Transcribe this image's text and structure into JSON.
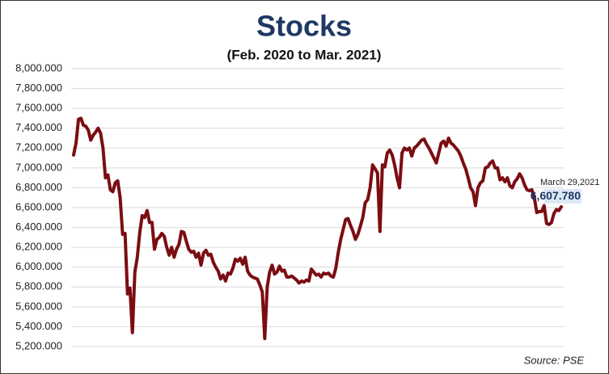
{
  "chart_data": {
    "type": "line",
    "title": "Stocks",
    "subtitle": "(Feb. 2020 to Mar. 2021)",
    "source": "Source: PSE",
    "color": "#7b0d12",
    "grid": true,
    "ylim": [
      5200,
      8000
    ],
    "yticks": [
      {
        "value": 5200,
        "label": "5,200.000"
      },
      {
        "value": 5400,
        "label": "5,400.000"
      },
      {
        "value": 5600,
        "label": "5,600.000"
      },
      {
        "value": 5800,
        "label": "5,800.000"
      },
      {
        "value": 6000,
        "label": "6,000.000"
      },
      {
        "value": 6200,
        "label": "6,200.000"
      },
      {
        "value": 6400,
        "label": "6,400.000"
      },
      {
        "value": 6600,
        "label": "6,600.000"
      },
      {
        "value": 6800,
        "label": "6,800.000"
      },
      {
        "value": 7000,
        "label": "7,000.000"
      },
      {
        "value": 7200,
        "label": "7,200.000"
      },
      {
        "value": 7400,
        "label": "7,400.000"
      },
      {
        "value": 7600,
        "label": "7,600.000"
      },
      {
        "value": 7800,
        "label": "7,800.000"
      },
      {
        "value": 8000,
        "label": "8,000.000"
      }
    ],
    "values": [
      7130,
      7250,
      7490,
      7500,
      7430,
      7420,
      7380,
      7280,
      7330,
      7360,
      7400,
      7350,
      7200,
      6900,
      6930,
      6780,
      6760,
      6850,
      6870,
      6700,
      6330,
      6340,
      5730,
      5790,
      5340,
      5950,
      6100,
      6350,
      6520,
      6500,
      6570,
      6450,
      6450,
      6180,
      6280,
      6300,
      6340,
      6310,
      6200,
      6120,
      6200,
      6100,
      6180,
      6230,
      6360,
      6350,
      6260,
      6180,
      6150,
      6160,
      6100,
      6140,
      6020,
      6140,
      6170,
      6120,
      6130,
      6050,
      6000,
      5960,
      5880,
      5920,
      5860,
      5940,
      5930,
      5990,
      6080,
      6060,
      6090,
      6030,
      6100,
      5960,
      5920,
      5900,
      5890,
      5880,
      5820,
      5750,
      5280,
      5800,
      5950,
      6020,
      5930,
      5950,
      6010,
      5960,
      5970,
      5900,
      5900,
      5910,
      5890,
      5870,
      5840,
      5860,
      5850,
      5870,
      5860,
      5980,
      5950,
      5920,
      5930,
      5900,
      5940,
      5930,
      5940,
      5910,
      5900,
      5990,
      6150,
      6280,
      6380,
      6480,
      6490,
      6420,
      6360,
      6280,
      6330,
      6410,
      6500,
      6650,
      6680,
      6800,
      7030,
      6990,
      6950,
      6360,
      7030,
      7010,
      7150,
      7180,
      7130,
      7030,
      6900,
      6800,
      7150,
      7200,
      7180,
      7200,
      7120,
      7200,
      7220,
      7250,
      7280,
      7290,
      7240,
      7200,
      7150,
      7100,
      7050,
      7150,
      7250,
      7270,
      7220,
      7300,
      7250,
      7230,
      7200,
      7170,
      7120,
      7050,
      6990,
      6900,
      6800,
      6760,
      6620,
      6800,
      6850,
      6870,
      7000,
      7010,
      7050,
      7070,
      7000,
      7000,
      6880,
      6900,
      6860,
      6900,
      6820,
      6800,
      6860,
      6890,
      6940,
      6900,
      6830,
      6780,
      6770,
      6780,
      6700,
      6550,
      6560,
      6560,
      6620,
      6440,
      6430,
      6450,
      6540,
      6580,
      6570,
      6607.78
    ],
    "annotation": {
      "text": "March 29,2021",
      "value_label": "6,607.780"
    }
  }
}
